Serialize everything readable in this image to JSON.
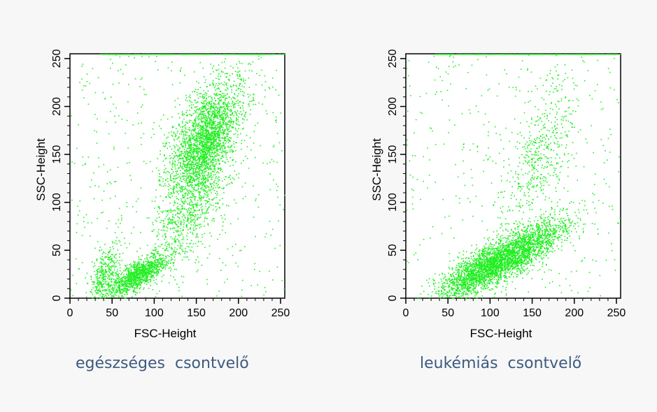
{
  "chart_data": [
    {
      "type": "scatter",
      "xlabel": "FSC-Height",
      "ylabel": "SSC-Height",
      "xlim": [
        0,
        255
      ],
      "ylim": [
        0,
        255
      ],
      "xticks": [
        "0",
        "50",
        "100",
        "150",
        "200",
        "250"
      ],
      "yticks": [
        "0",
        "50",
        "100",
        "150",
        "200",
        "250"
      ],
      "color": "#22ee22",
      "caption": "egészséges  csontvelő",
      "clusters": [
        {
          "center": [
            160,
            165
          ],
          "spread": [
            20,
            30
          ],
          "count": 2600
        },
        {
          "center": [
            80,
            25
          ],
          "spread": [
            18,
            8
          ],
          "count": 1200
        },
        {
          "center": [
            140,
            90
          ],
          "spread": [
            22,
            25
          ],
          "count": 600
        },
        {
          "center": [
            40,
            25
          ],
          "spread": [
            8,
            15
          ],
          "count": 350
        }
      ],
      "background_points": 500
    },
    {
      "type": "scatter",
      "xlabel": "FSC-Height",
      "ylabel": "SSC-Height",
      "xlim": [
        0,
        255
      ],
      "ylim": [
        0,
        255
      ],
      "xticks": [
        "0",
        "50",
        "100",
        "150",
        "200",
        "250"
      ],
      "yticks": [
        "0",
        "50",
        "100",
        "150",
        "200",
        "250"
      ],
      "color": "#22ee22",
      "caption": "leukémiás  csontvelő",
      "clusters": [
        {
          "center": [
            100,
            35
          ],
          "spread": [
            30,
            12
          ],
          "count": 2800
        },
        {
          "center": [
            150,
            55
          ],
          "spread": [
            25,
            12
          ],
          "count": 800
        },
        {
          "center": [
            160,
            150
          ],
          "spread": [
            20,
            40
          ],
          "count": 500
        }
      ],
      "background_points": 400
    }
  ]
}
